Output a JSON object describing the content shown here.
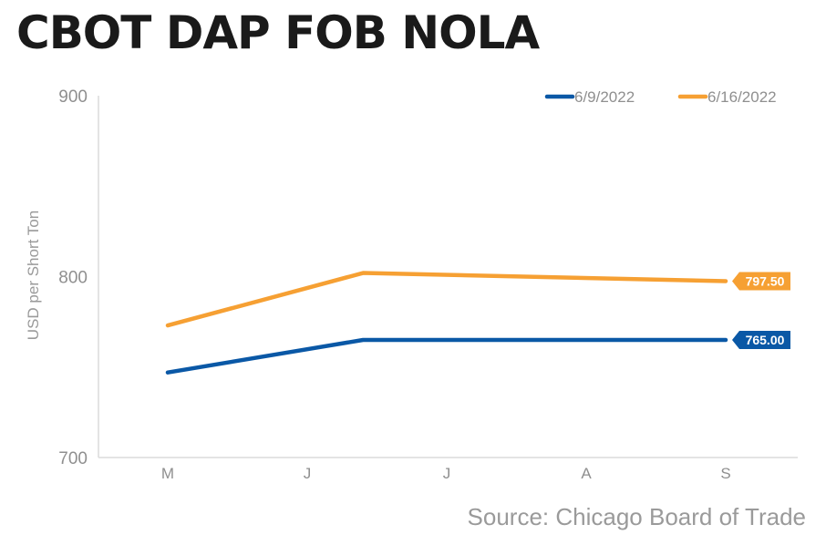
{
  "chart_data": {
    "type": "line",
    "title": "CBOT DAP FOB NOLA",
    "ylabel": "USD per Short Ton",
    "xlabel": "",
    "categories": [
      "M",
      "J",
      "J",
      "A",
      "S"
    ],
    "ylim": [
      700,
      900
    ],
    "yticks": [
      700,
      800,
      900
    ],
    "grid": false,
    "legend_position": "top-right",
    "series": [
      {
        "name": "6/9/2022",
        "color": "#0a58a6",
        "points": [
          [
            0,
            747
          ],
          [
            1.4,
            765
          ],
          [
            4,
            765
          ]
        ],
        "end_label": "765.00"
      },
      {
        "name": "6/16/2022",
        "color": "#f6a033",
        "points": [
          [
            0,
            773
          ],
          [
            1.4,
            802
          ],
          [
            4,
            797.5
          ]
        ],
        "end_label": "797.50"
      }
    ]
  },
  "source": "Source: Chicago Board of Trade"
}
